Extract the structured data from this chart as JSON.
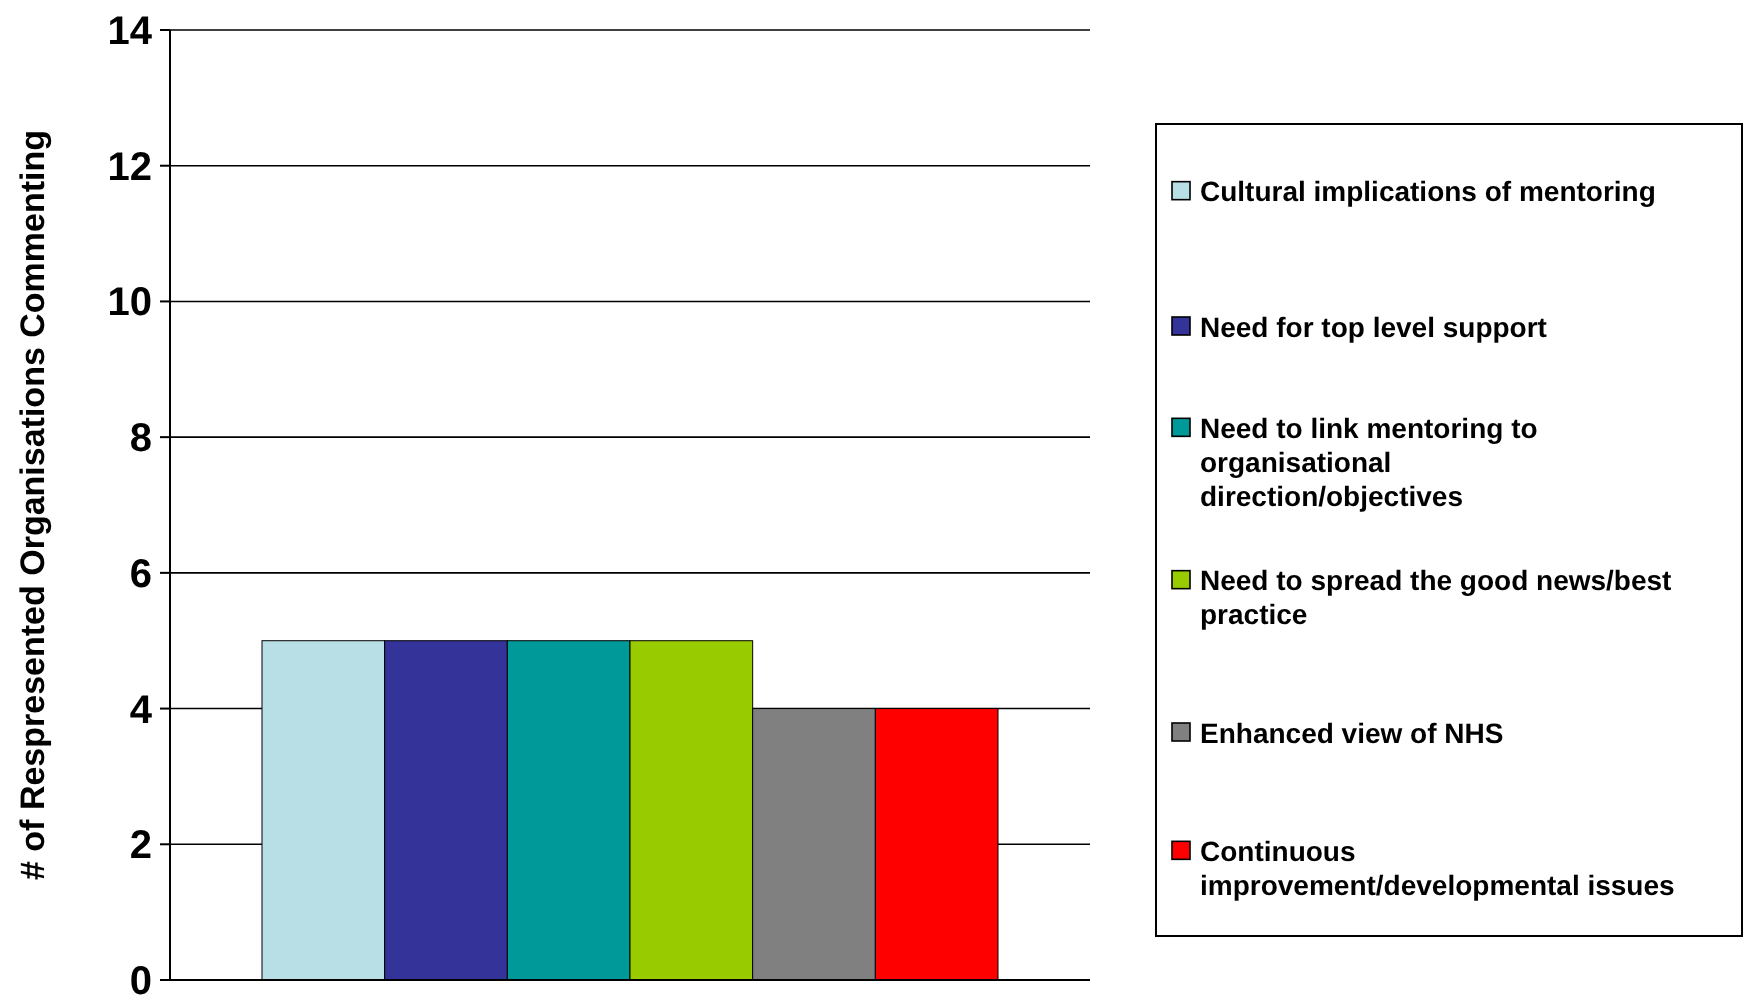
{
  "chart_data": {
    "type": "bar",
    "ylabel": "# of Respresented Organisations Commenting",
    "categories": [
      null
    ],
    "series": [
      {
        "name": "Cultural implications of mentoring",
        "color": "#b9dfe6",
        "values": [
          5
        ]
      },
      {
        "name": "Need for top level support",
        "color": "#333399",
        "values": [
          5
        ]
      },
      {
        "name": "Need to link mentoring to organisational direction/objectives",
        "color": "#009999",
        "values": [
          5
        ]
      },
      {
        "name": "Need to spread the good news/best practice",
        "color": "#99cc00",
        "values": [
          5
        ]
      },
      {
        "name": "Enhanced view of NHS",
        "color": "#808080",
        "values": [
          4
        ]
      },
      {
        "name": "Continuous improvement/developmental issues",
        "color": "#ff0000",
        "values": [
          4
        ]
      }
    ],
    "ylim": [
      0,
      14
    ],
    "yticks": [
      0,
      2,
      4,
      6,
      8,
      10,
      12,
      14
    ],
    "grid": "y",
    "legend": "right"
  }
}
